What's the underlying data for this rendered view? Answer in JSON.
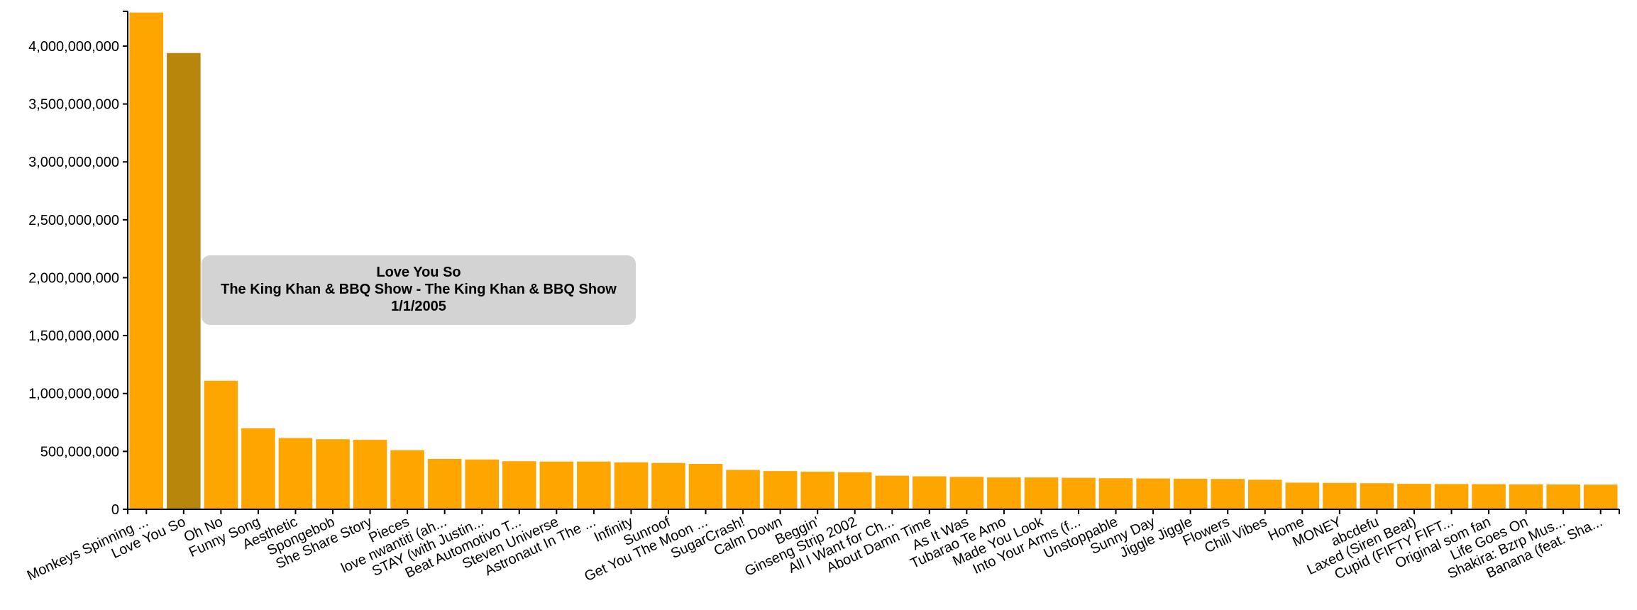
{
  "chart_data": {
    "type": "bar",
    "ylim": [
      0,
      4300000000
    ],
    "yticks": [
      "0",
      "500,000,000",
      "1,000,000,000",
      "1,500,000,000",
      "2,000,000,000",
      "2,500,000,000",
      "3,000,000,000",
      "3,500,000,000",
      "4,000,000,000"
    ],
    "ytick_values": [
      0,
      500000000,
      1000000000,
      1500000000,
      2000000000,
      2500000000,
      3000000000,
      3500000000,
      4000000000
    ],
    "colors": {
      "bar": "#ffa500",
      "highlight": "#b8860b",
      "tooltip_bg": "#d3d3d3"
    },
    "highlight_index": 1,
    "categories": [
      "Monkeys Spinning ...",
      "Love You So",
      "Oh No",
      "Funny Song",
      "Aesthetic",
      "Spongebob",
      "She Share Story",
      "Pieces",
      "love nwantiti (ah...",
      "STAY (with Justin...",
      "Beat Automotivo T...",
      "Steven Universe",
      "Astronaut In The ...",
      "Infinity",
      "Sunroof",
      "Get You The Moon ...",
      "SugarCrash!",
      "Calm Down",
      "Beggin'",
      "Ginseng Strip 2002",
      "All I Want for Ch...",
      "About Damn Time",
      "As It Was",
      "Tubarao Te Amo",
      "Made You Look",
      "Into Your Arms (f...",
      "Unstoppable",
      "Sunny Day",
      "Jiggle Jiggle",
      "Flowers",
      "Chill Vibes",
      "Home",
      "MONEY",
      "abcdefu",
      "Laxed (Siren Beat)",
      "Cupid (FIFTY FIFT...",
      "Original som fan",
      "Life Goes On",
      "Shakira: Bzrp Mus...",
      "Banana (feat. Sha..."
    ],
    "values": [
      4290000000,
      3940000000,
      1110000000,
      700000000,
      615000000,
      605000000,
      600000000,
      510000000,
      435000000,
      430000000,
      415000000,
      412000000,
      412000000,
      405000000,
      400000000,
      392000000,
      340000000,
      330000000,
      325000000,
      320000000,
      290000000,
      285000000,
      280000000,
      275000000,
      275000000,
      272000000,
      268000000,
      266000000,
      264000000,
      262000000,
      255000000,
      230000000,
      228000000,
      225000000,
      220000000,
      218000000,
      217000000,
      215000000,
      214000000,
      213000000
    ]
  },
  "tooltip": {
    "title": "Love You So",
    "artist": "The King Khan & BBQ Show - The King Khan & BBQ Show",
    "date": "1/1/2005"
  }
}
